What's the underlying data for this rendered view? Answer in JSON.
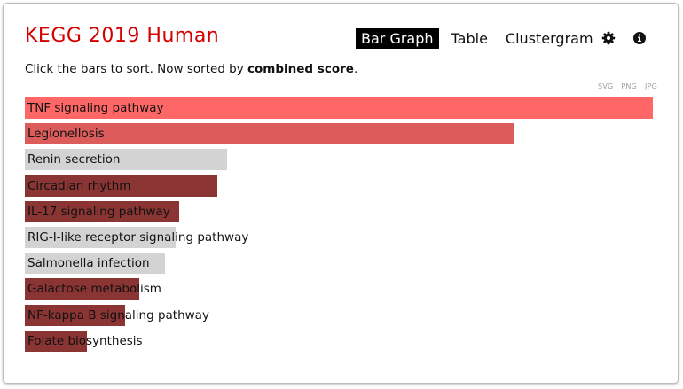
{
  "header": {
    "title": "KEGG 2019 Human",
    "title_color": "#d40000"
  },
  "tabs": [
    {
      "label": "Bar Graph",
      "active": true
    },
    {
      "label": "Table",
      "active": false
    },
    {
      "label": "Clustergram",
      "active": false
    }
  ],
  "icons": {
    "settings": "gear-icon",
    "info": "info-icon"
  },
  "subtitle": {
    "prefix": "Click the bars to sort. Now sorted by ",
    "sort_key": "combined score",
    "suffix": "."
  },
  "downloads": [
    "SVG",
    "PNG",
    "JPG"
  ],
  "bars": [
    {
      "label": "TNF signaling pathway",
      "value": 1.0,
      "color": "#ff6666"
    },
    {
      "label": "Legionellosis",
      "value": 0.78,
      "color": "#dc5c5c"
    },
    {
      "label": "Renin secretion",
      "value": 0.322,
      "color": "#d3d3d3"
    },
    {
      "label": "Circadian rhythm",
      "value": 0.307,
      "color": "#8a3434"
    },
    {
      "label": "IL-17 signaling pathway",
      "value": 0.246,
      "color": "#8a3434"
    },
    {
      "label": "RIG-I-like receptor signaling pathway",
      "value": 0.24,
      "color": "#d3d3d3"
    },
    {
      "label": "Salmonella infection",
      "value": 0.223,
      "color": "#d3d3d3"
    },
    {
      "label": "Galactose metabolism",
      "value": 0.182,
      "color": "#8a3434"
    },
    {
      "label": "NF-kappa B signaling pathway",
      "value": 0.159,
      "color": "#8a3434"
    },
    {
      "label": "Folate biosynthesis",
      "value": 0.099,
      "color": "#8a3434"
    }
  ]
}
